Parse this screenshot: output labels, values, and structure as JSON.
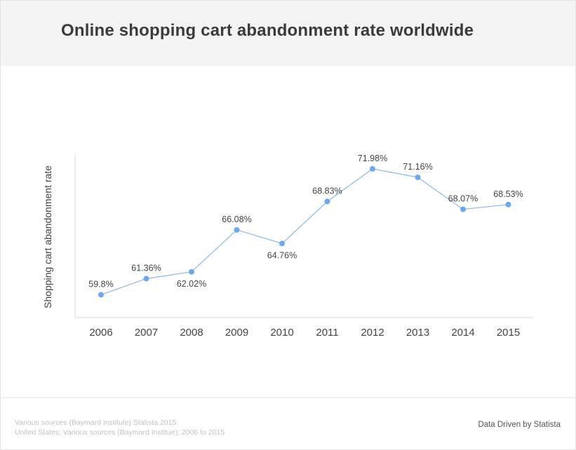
{
  "header": {
    "title": "Online shopping cart abandonment rate worldwide"
  },
  "chart_data": {
    "type": "line",
    "title": "Online shopping cart abandonment rate worldwide",
    "xlabel": "",
    "ylabel": "Shopping cart abandonment rate",
    "categories": [
      "2006",
      "2007",
      "2008",
      "2009",
      "2010",
      "2011",
      "2012",
      "2013",
      "2014",
      "2015"
    ],
    "series": [
      {
        "name": "Shopping cart abandonment rate",
        "values": [
          59.8,
          61.36,
          62.02,
          66.08,
          64.76,
          68.83,
          71.98,
          71.16,
          68.07,
          68.53
        ],
        "labels": [
          "59.8%",
          "61.36%",
          "62.02%",
          "66.08%",
          "64.76%",
          "68.83%",
          "71.98%",
          "71.16%",
          "68.07%",
          "68.53%"
        ]
      }
    ],
    "ylim": [
      57.6,
      73.4
    ],
    "grid": false,
    "line_color": "#8ab9f1",
    "marker_color": "#6aa9f2"
  },
  "footer": {
    "source_line1": "Various sources (Baymard Institute) Statista 2015",
    "source_line2": "United States: Various sources (Baymard Institue); 2006 to 2015",
    "credit": "Data Driven by Statista"
  }
}
